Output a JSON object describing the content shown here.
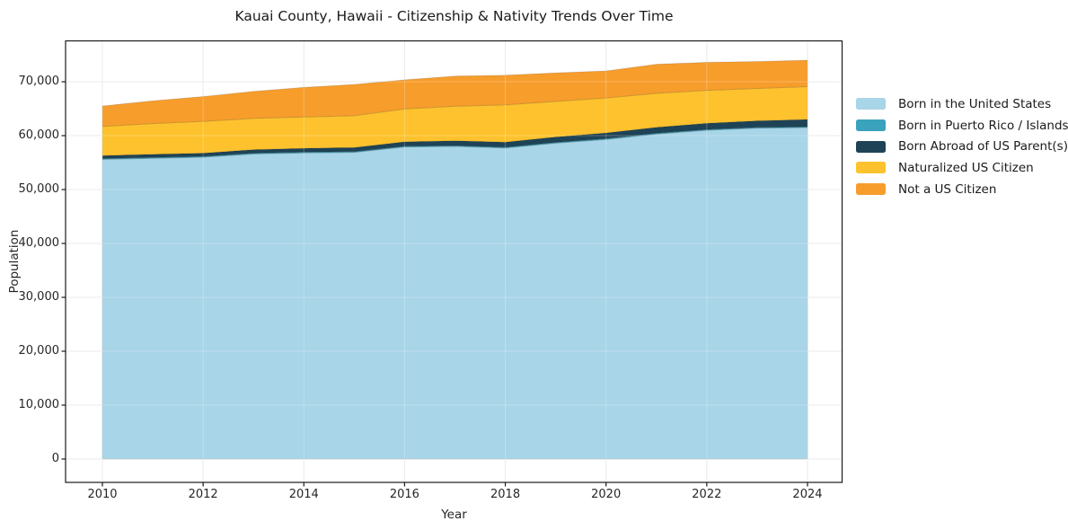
{
  "figure": {
    "title": "Kauai County, Hawaii - Citizenship & Nativity Trends Over Time",
    "xlabel": "Year",
    "ylabel": "Population"
  },
  "chart_data": {
    "type": "area",
    "stacked": true,
    "title": "Kauai County, Hawaii - Citizenship & Nativity Trends Over Time",
    "xlabel": "Year",
    "ylabel": "Population",
    "x": [
      2010,
      2011,
      2012,
      2013,
      2014,
      2015,
      2016,
      2017,
      2018,
      2019,
      2020,
      2021,
      2022,
      2023,
      2024
    ],
    "series": [
      {
        "name": "Born in the United States",
        "color": "#a8d5e8",
        "values": [
          55600,
          55800,
          56000,
          56600,
          56800,
          56900,
          57900,
          58000,
          57700,
          58600,
          59300,
          60300,
          61000,
          61400,
          61500
        ]
      },
      {
        "name": "Born in Puerto Rico / Islands",
        "color": "#3aa2bd",
        "values": [
          150,
          150,
          150,
          150,
          150,
          150,
          150,
          150,
          150,
          150,
          150,
          150,
          150,
          150,
          150
        ]
      },
      {
        "name": "Born Abroad of US Parent(s)",
        "color": "#1f4356",
        "values": [
          550,
          600,
          600,
          650,
          700,
          750,
          800,
          900,
          950,
          1000,
          1050,
          1100,
          1150,
          1200,
          1350
        ]
      },
      {
        "name": "Naturalized US Citizen",
        "color": "#fdc22d",
        "values": [
          5400,
          5700,
          5900,
          5800,
          5800,
          5900,
          6100,
          6400,
          6900,
          6600,
          6500,
          6300,
          6100,
          6000,
          6100
        ]
      },
      {
        "name": "Not a US Citizen",
        "color": "#f79d2c",
        "values": [
          3800,
          4200,
          4600,
          5000,
          5500,
          5800,
          5400,
          5600,
          5500,
          5300,
          5000,
          5400,
          5200,
          5000,
          4900
        ]
      }
    ],
    "totals": [
      65500,
      66450,
      67250,
      68200,
      68950,
      69500,
      70350,
      71050,
      71200,
      71650,
      72000,
      73250,
      73600,
      73750,
      74000
    ],
    "xticks": [
      2010,
      2012,
      2014,
      2016,
      2018,
      2020,
      2022,
      2024
    ],
    "xtick_labels": [
      "2010",
      "2012",
      "2014",
      "2016",
      "2018",
      "2020",
      "2022",
      "2024"
    ],
    "yticks": [
      0,
      10000,
      20000,
      30000,
      40000,
      50000,
      60000,
      70000
    ],
    "ytick_labels": [
      "0",
      "10,000",
      "20,000",
      "30,000",
      "40,000",
      "50,000",
      "60,000",
      "70,000"
    ],
    "xlim": [
      2009.3,
      2024.7
    ],
    "ylim": [
      -4300,
      77600
    ],
    "grid": true,
    "legend_position": "center right outside"
  },
  "colors": {
    "background": "#ffffff",
    "grid": "#e4e4e4",
    "spine": "#1a1a1a",
    "text": "#262626"
  }
}
